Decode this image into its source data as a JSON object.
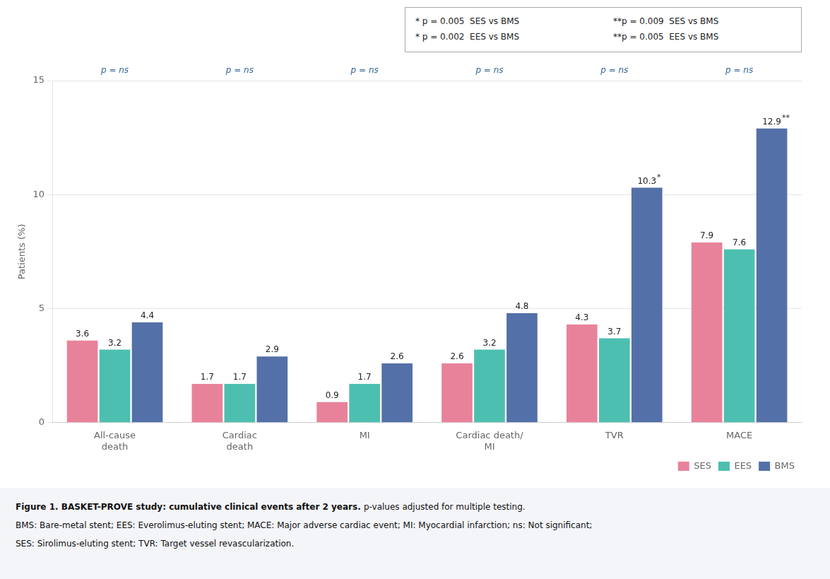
{
  "chart_data": {
    "type": "bar",
    "categories": [
      "All-cause\ndeath",
      "Cardiac\ndeath",
      "MI",
      "Cardiac death/\nMI",
      "TVR",
      "MACE"
    ],
    "series": [
      {
        "name": "SES",
        "color": "#E8829A",
        "values": [
          3.6,
          1.7,
          0.9,
          2.6,
          4.3,
          7.9
        ]
      },
      {
        "name": "EES",
        "color": "#4DBFB0",
        "values": [
          3.2,
          1.7,
          1.7,
          3.2,
          3.7,
          7.6
        ]
      },
      {
        "name": "BMS",
        "color": "#5470A8",
        "values": [
          4.4,
          2.9,
          2.6,
          4.8,
          10.3,
          12.9
        ],
        "value_notes": [
          null,
          null,
          null,
          null,
          "*",
          "**"
        ]
      }
    ],
    "ylabel": "Patients (%)",
    "ylim": [
      0,
      15
    ],
    "yticks": [
      0,
      5,
      10,
      15
    ],
    "grid": true,
    "legend": "lower right",
    "data_labels": true,
    "p_labels": [
      "p = ns",
      "p = ns",
      "p = ns",
      "p = ns",
      "p = ns",
      "p = ns"
    ],
    "notes": [
      [
        "* p = 0.005  SES vs BMS",
        "* p = 0.002  EES vs BMS"
      ],
      [
        "**p = 0.009  SES vs BMS",
        "**p = 0.005  EES vs BMS"
      ]
    ],
    "caption": {
      "title": "Figure 1. BASKET-PROVE study: cumulative clinical events after 2 years.",
      "text": "p-values adjusted for multiple testing.",
      "lines": [
        "BMS: Bare-metal stent; EES: Everolimus-eluting stent; MACE: Major adverse cardiac event; MI: Myocardial infarction; ns: Not significant;",
        "SES: Sirolimus-eluting stent; TVR: Target vessel revascularization."
      ]
    }
  }
}
